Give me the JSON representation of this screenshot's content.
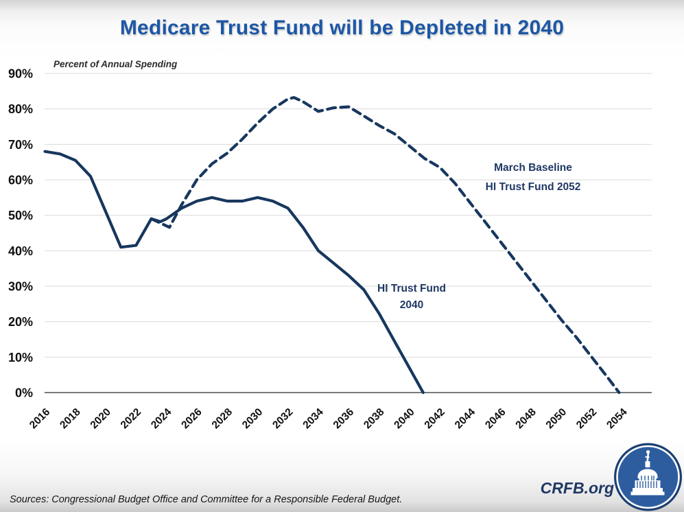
{
  "chart_data": {
    "type": "line",
    "title": "Medicare Trust Fund will be Depleted in 2040",
    "axis_note": "Percent of Annual Spending",
    "ylabel": "Percent of Annual Spending",
    "ylim": [
      0,
      90
    ],
    "xlim": [
      2016,
      2054
    ],
    "grid": "horizontal",
    "legend_position": "none",
    "line_color": "#17375e",
    "grid_color": "#d9d9d9",
    "axis_color": "#4d4d4d",
    "ytick_labels": [
      "0%",
      "10%",
      "20%",
      "30%",
      "40%",
      "50%",
      "60%",
      "70%",
      "80%",
      "90%"
    ],
    "xtick_labels": [
      "2016",
      "2018",
      "2020",
      "2022",
      "2024",
      "2026",
      "2028",
      "2030",
      "2032",
      "2034",
      "2036",
      "2038",
      "2040",
      "2042",
      "2044",
      "2046",
      "2048",
      "2050",
      "2052",
      "2054"
    ],
    "series": [
      {
        "name": "HI Trust Fund 2040",
        "style": "solid",
        "points": [
          [
            2016,
            68
          ],
          [
            2017,
            67.3
          ],
          [
            2018,
            65.5
          ],
          [
            2019,
            61
          ],
          [
            2020,
            51
          ],
          [
            2021,
            41
          ],
          [
            2022,
            41.5
          ],
          [
            2023,
            49
          ],
          [
            2023.6,
            48.2
          ],
          [
            2024,
            49
          ],
          [
            2025,
            52
          ],
          [
            2026,
            54
          ],
          [
            2027,
            55
          ],
          [
            2028,
            54
          ],
          [
            2029,
            54
          ],
          [
            2030,
            55
          ],
          [
            2031,
            54
          ],
          [
            2032,
            52
          ],
          [
            2033,
            46.5
          ],
          [
            2034,
            40
          ],
          [
            2035,
            36.5
          ],
          [
            2036,
            33
          ],
          [
            2037,
            29
          ],
          [
            2038,
            22.3
          ],
          [
            2039,
            14.6
          ],
          [
            2040,
            6.9
          ],
          [
            2040.9,
            0
          ]
        ]
      },
      {
        "name": "March Baseline HI Trust Fund 2052",
        "style": "dashed",
        "points": [
          [
            2023,
            49
          ],
          [
            2024.2,
            46.6
          ],
          [
            2025,
            53
          ],
          [
            2026,
            60
          ],
          [
            2027,
            64.5
          ],
          [
            2028,
            67.5
          ],
          [
            2029,
            71.5
          ],
          [
            2030,
            76
          ],
          [
            2031,
            80
          ],
          [
            2032,
            82.8
          ],
          [
            2032.4,
            83.2
          ],
          [
            2033,
            82
          ],
          [
            2034,
            79.3
          ],
          [
            2035,
            80.3
          ],
          [
            2036,
            80.6
          ],
          [
            2037,
            78
          ],
          [
            2038,
            75.3
          ],
          [
            2039,
            73
          ],
          [
            2040,
            69.5
          ],
          [
            2041,
            66
          ],
          [
            2042,
            63.5
          ],
          [
            2043,
            59
          ],
          [
            2044,
            53.5
          ],
          [
            2045,
            48
          ],
          [
            2046,
            42.5
          ],
          [
            2047,
            37
          ],
          [
            2048,
            31.5
          ],
          [
            2049,
            26
          ],
          [
            2050,
            20.5
          ],
          [
            2051,
            15.5
          ],
          [
            2052,
            10
          ],
          [
            2053,
            4.5
          ],
          [
            2053.8,
            0
          ]
        ]
      }
    ],
    "annotations": {
      "dashed_line1": "March Baseline",
      "dashed_line2": "HI Trust Fund 2052",
      "solid_line1": "HI Trust Fund",
      "solid_line2": "2040"
    }
  },
  "footer": {
    "source_note": "Sources: Congressional Budget Office and Committee for a Responsible Federal Budget.",
    "brand": "CRFB.org",
    "logo": "capitol-dome-logo"
  }
}
